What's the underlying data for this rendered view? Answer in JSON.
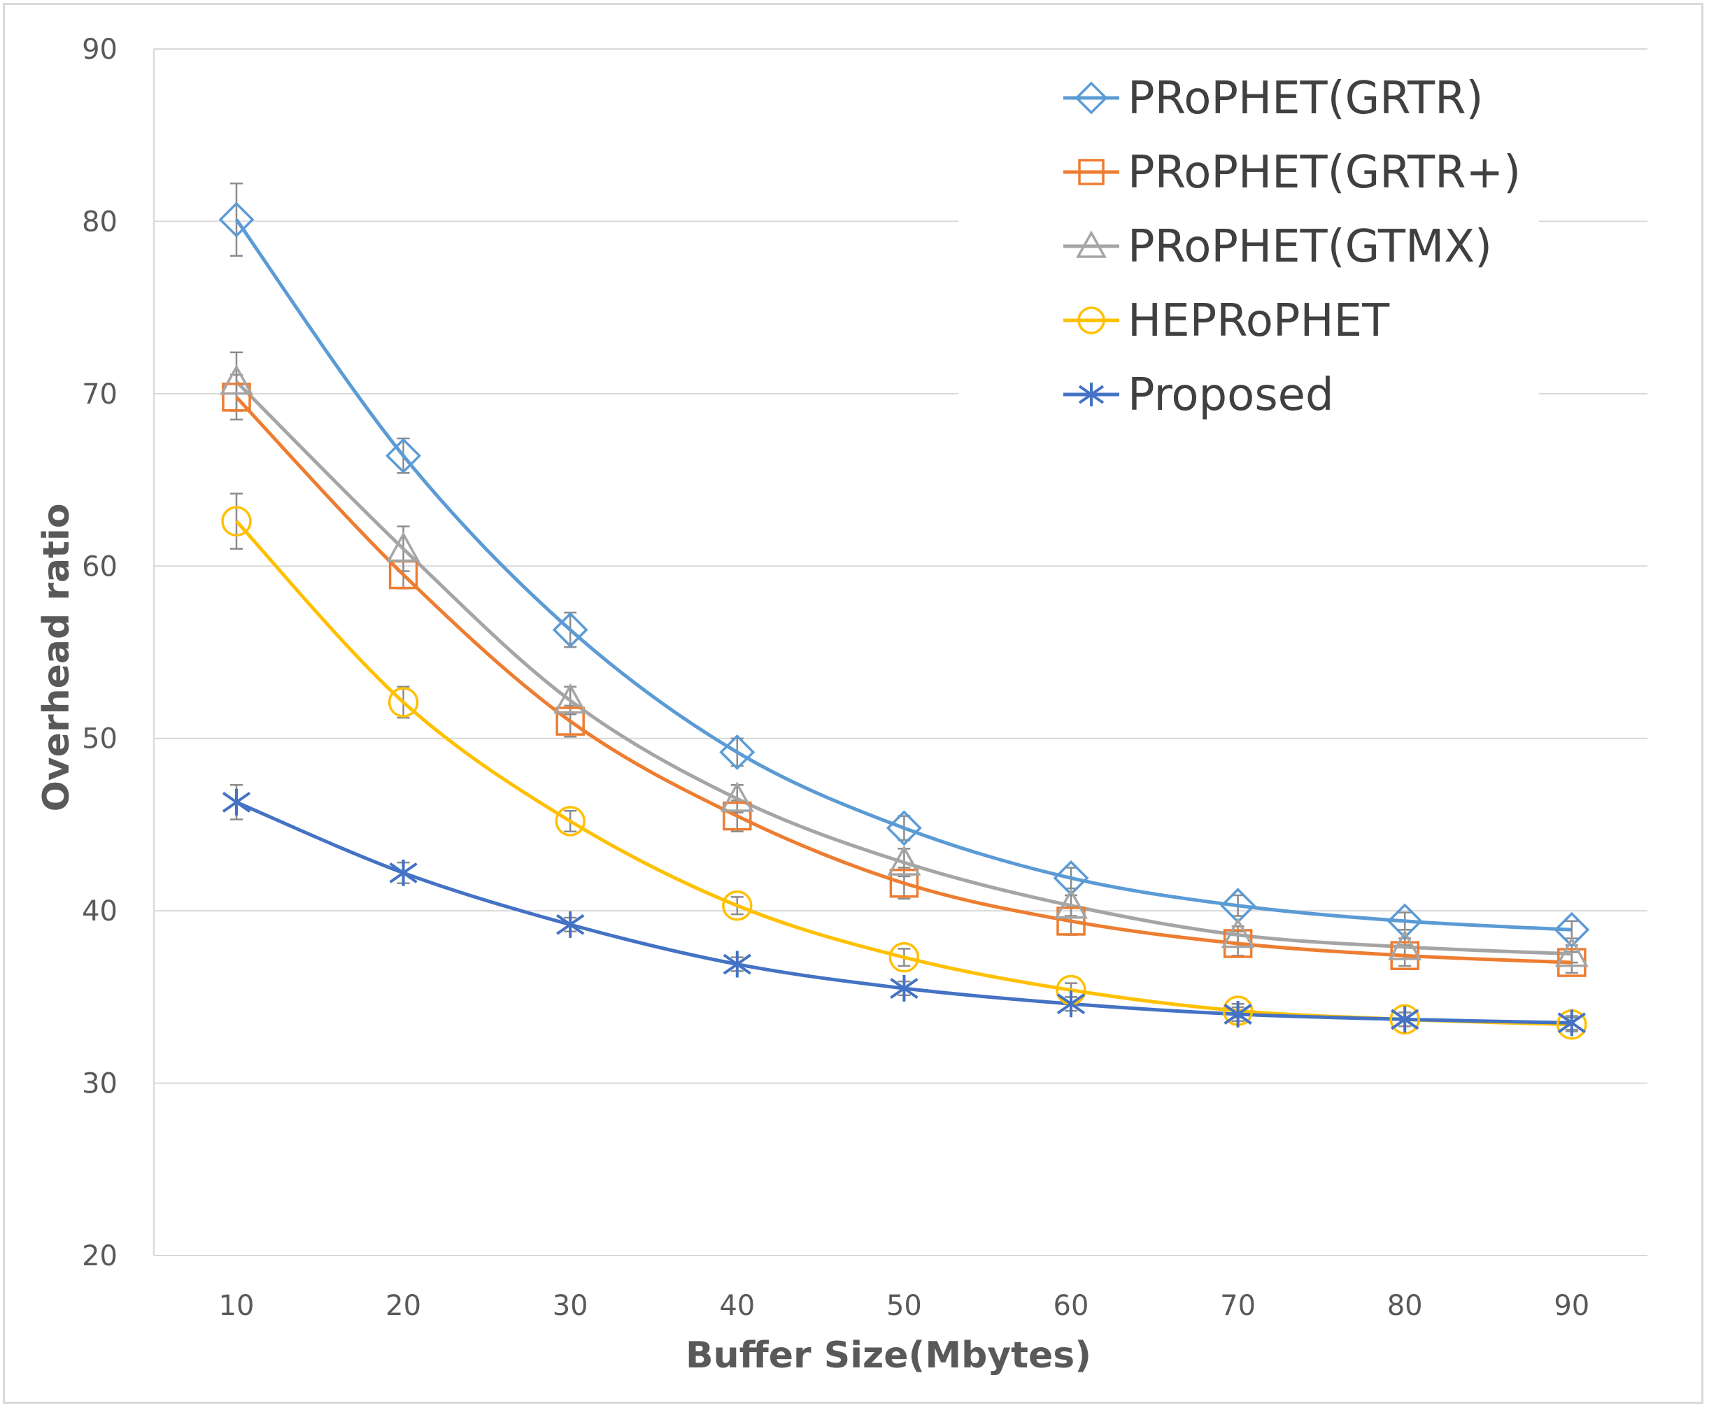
{
  "chart_data": {
    "type": "line",
    "title": "",
    "xlabel": "Buffer Size(Mbytes)",
    "ylabel": "Overhead ratio",
    "x": [
      10,
      20,
      30,
      40,
      50,
      60,
      70,
      80,
      90
    ],
    "x_ticks": [
      "10",
      "20",
      "30",
      "40",
      "50",
      "60",
      "70",
      "80",
      "90"
    ],
    "y_ticks": [
      "20",
      "30",
      "40",
      "50",
      "60",
      "70",
      "80",
      "90"
    ],
    "ylim": [
      20,
      90
    ],
    "grid": "horizontal",
    "legend_position": "top-right",
    "series": [
      {
        "name": "PRoPHET(GRTR)",
        "marker": "diamond",
        "color": "#5b9bd5",
        "values": [
          80.1,
          66.4,
          56.3,
          49.2,
          44.8,
          41.9,
          40.3,
          39.4,
          38.9
        ],
        "errors": [
          2.1,
          1.0,
          1.0,
          0.8,
          0.7,
          0.6,
          0.6,
          0.5,
          0.5
        ]
      },
      {
        "name": "PRoPHET(GRTR+)",
        "marker": "square",
        "color": "#ed7d31",
        "values": [
          69.8,
          59.5,
          51.0,
          45.5,
          41.6,
          39.4,
          38.1,
          37.4,
          37.0
        ],
        "errors": [
          1.3,
          0.8,
          0.9,
          0.9,
          0.9,
          0.8,
          0.7,
          0.6,
          0.6
        ]
      },
      {
        "name": "PRoPHET(GTMX)",
        "marker": "triangle",
        "color": "#a5a5a5",
        "values": [
          70.7,
          61.0,
          52.2,
          46.5,
          42.8,
          40.3,
          38.6,
          37.9,
          37.5
        ],
        "errors": [
          1.7,
          1.3,
          0.8,
          0.8,
          0.8,
          0.6,
          0.5,
          0.5,
          0.5
        ]
      },
      {
        "name": "HEPRoPHET",
        "marker": "circle",
        "color": "#ffc000",
        "values": [
          62.6,
          52.1,
          45.2,
          40.3,
          37.3,
          35.4,
          34.2,
          33.7,
          33.4
        ],
        "errors": [
          1.6,
          0.9,
          0.6,
          0.5,
          0.5,
          0.4,
          0.4,
          0.4,
          0.4
        ]
      },
      {
        "name": "Proposed",
        "marker": "asterisk",
        "color": "#4472c4",
        "values": [
          46.3,
          42.2,
          39.2,
          36.9,
          35.5,
          34.6,
          34.0,
          33.7,
          33.5
        ],
        "errors": [
          1.0,
          0.6,
          0.4,
          0.4,
          0.4,
          0.4,
          0.4,
          0.4,
          0.4
        ]
      }
    ]
  }
}
